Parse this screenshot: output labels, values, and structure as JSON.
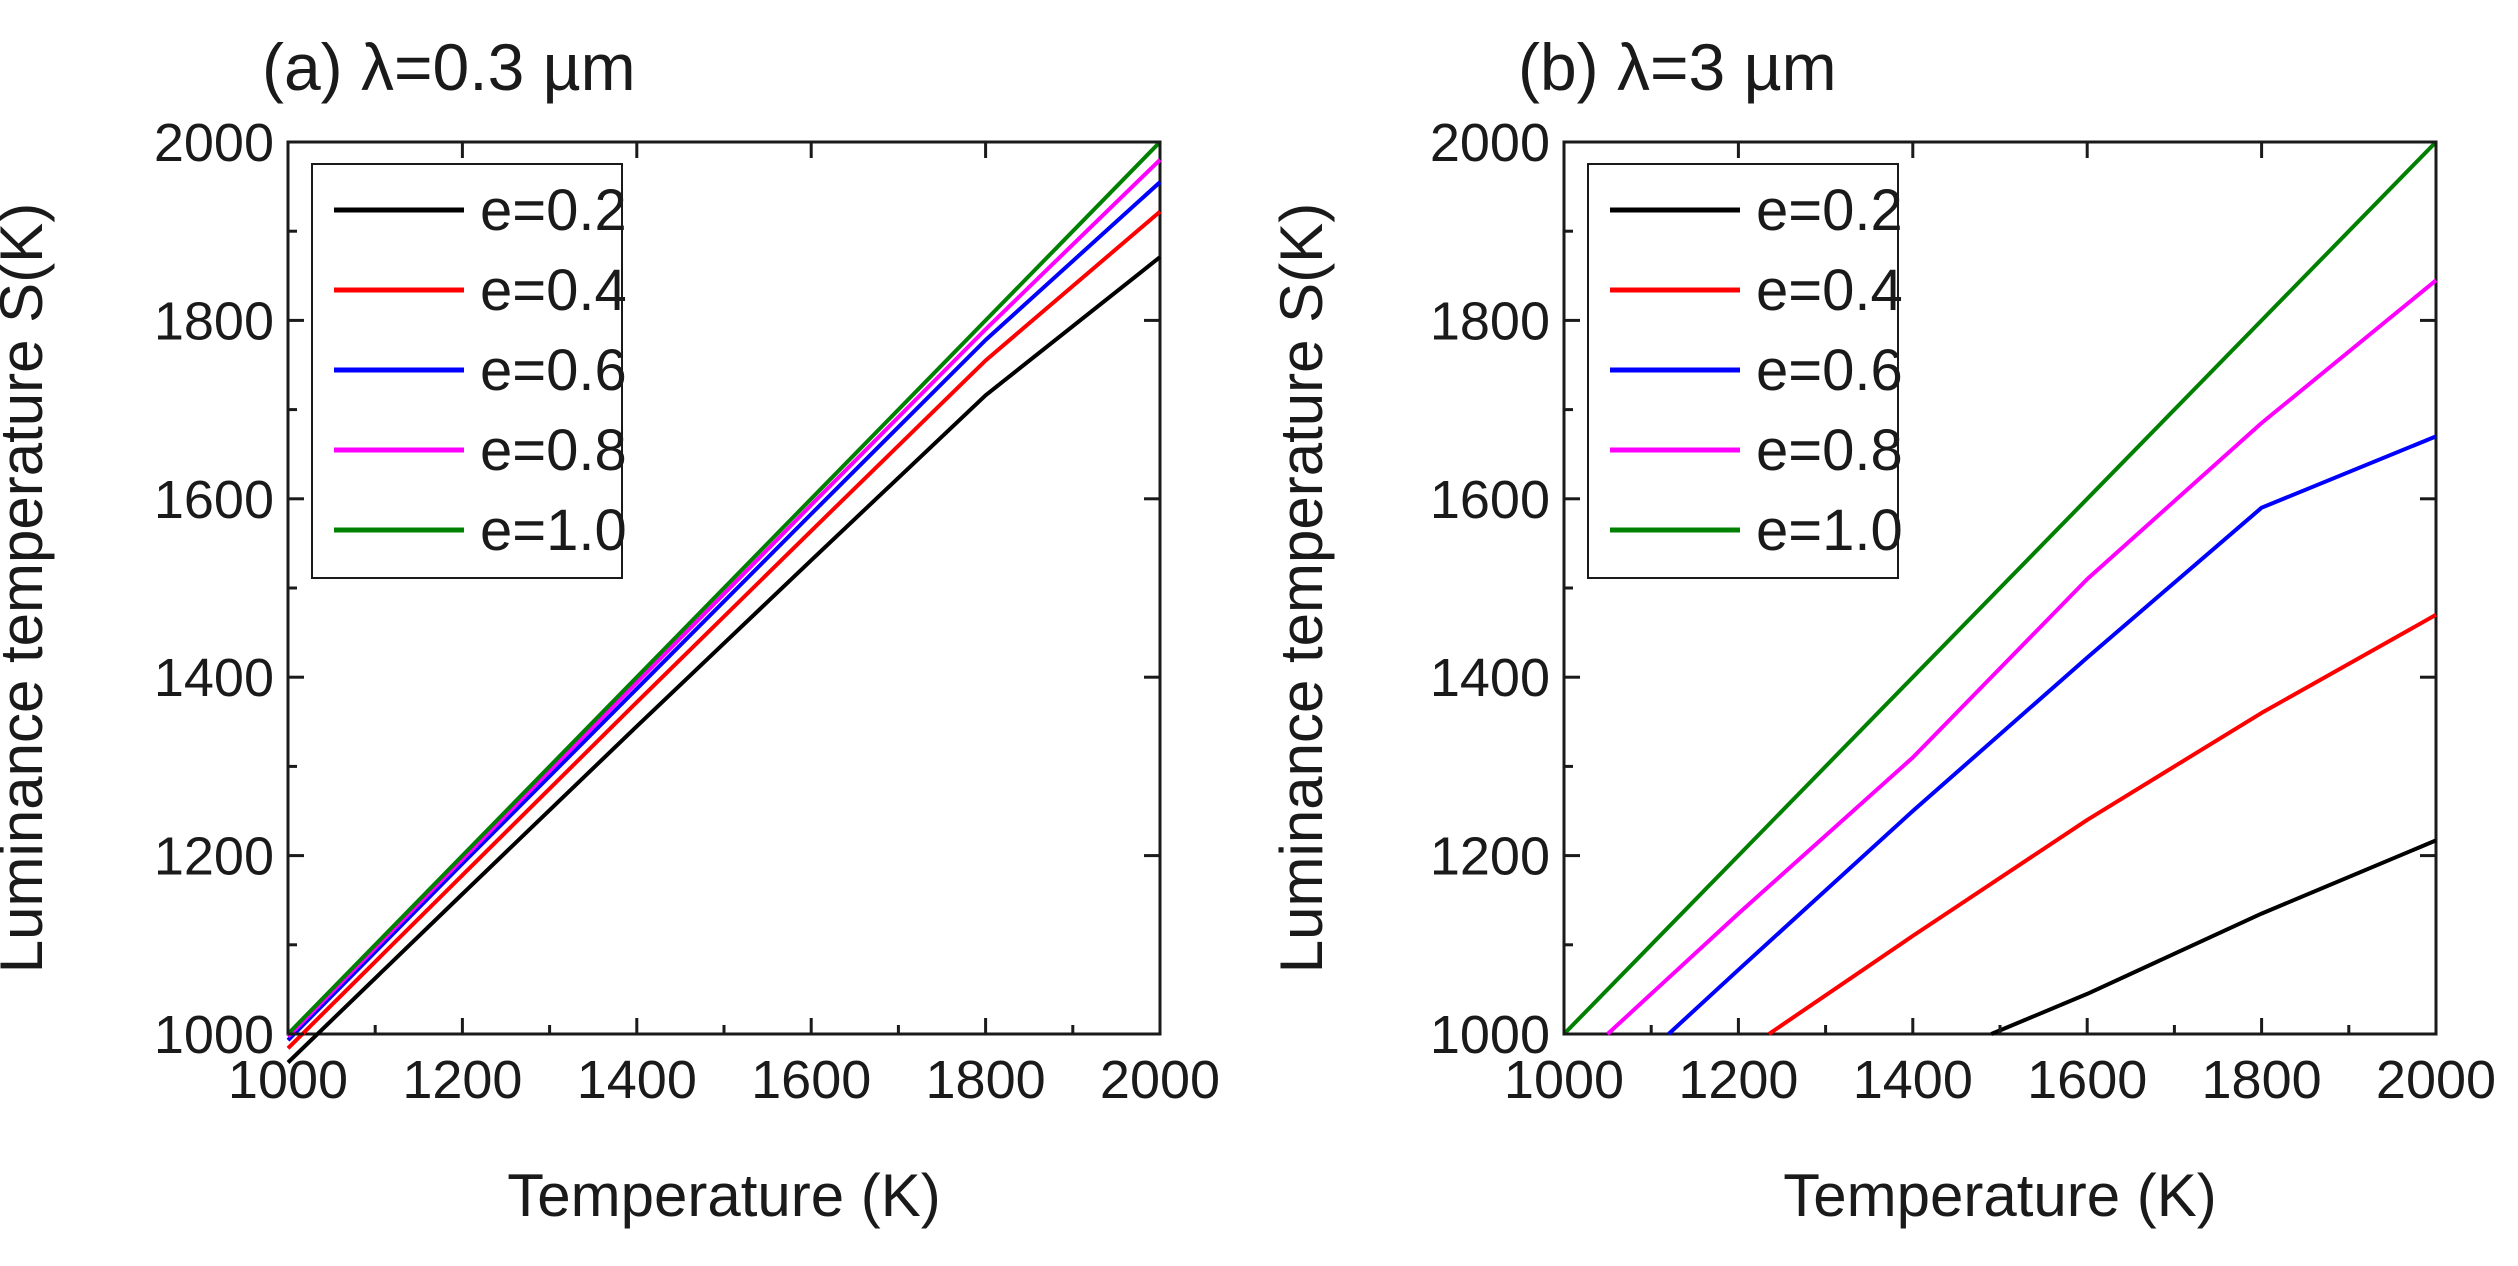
{
  "figure": {
    "description_free": true
  },
  "chart_data": [
    {
      "type": "line",
      "title": "(a) λ=0.3 µm",
      "xlabel": "Temperature (K)",
      "ylabel": "Luminance temperature S(K)",
      "xlim": [
        1000,
        2000
      ],
      "ylim": [
        1000,
        2000
      ],
      "xticks": [
        "1000",
        "1200",
        "1400",
        "1600",
        "1800",
        "2000"
      ],
      "yticks": [
        "1000",
        "1200",
        "1400",
        "1600",
        "1800",
        "2000"
      ],
      "legend_position": "top-left",
      "series": [
        {
          "name": "e=0.2",
          "color": "#000000",
          "x": [
            1000,
            1200,
            1400,
            1600,
            1800,
            2000
          ],
          "values": [
            968,
            1157,
            1345,
            1531,
            1716,
            1871
          ]
        },
        {
          "name": "e=0.4",
          "color": "#ff0000",
          "x": [
            1000,
            1200,
            1400,
            1600,
            1800,
            2000
          ],
          "values": [
            984,
            1178,
            1372,
            1564,
            1755,
            1922
          ]
        },
        {
          "name": "e=0.6",
          "color": "#0000ff",
          "x": [
            1000,
            1200,
            1400,
            1600,
            1800,
            2000
          ],
          "values": [
            993,
            1191,
            1387,
            1583,
            1778,
            1955
          ]
        },
        {
          "name": "e=0.8",
          "color": "#ff00ff",
          "x": [
            1000,
            1200,
            1400,
            1600,
            1800,
            2000
          ],
          "values": [
            997,
            1196,
            1394,
            1593,
            1790,
            1980
          ]
        },
        {
          "name": "e=1.0",
          "color": "#008000",
          "x": [
            1000,
            1200,
            1400,
            1600,
            1800,
            2000
          ],
          "values": [
            1000,
            1200,
            1400,
            1600,
            1800,
            2000
          ]
        }
      ]
    },
    {
      "type": "line",
      "title": "(b) λ=3 µm",
      "xlabel": "Temperature (K)",
      "ylabel": "Luminance temperature S(K)",
      "xlim": [
        1000,
        2000
      ],
      "ylim": [
        1000,
        2000
      ],
      "xticks": [
        "1000",
        "1200",
        "1400",
        "1600",
        "1800",
        "2000"
      ],
      "yticks": [
        "1000",
        "1200",
        "1400",
        "1600",
        "1800",
        "2000"
      ],
      "legend_position": "top-left",
      "series": [
        {
          "name": "e=0.2",
          "color": "#000000",
          "x": [
            1490,
            1600,
            1800,
            2000
          ],
          "values": [
            1000,
            1045,
            1135,
            1217
          ]
        },
        {
          "name": "e=0.4",
          "color": "#ff0000",
          "x": [
            1235,
            1400,
            1600,
            1800,
            2000
          ],
          "values": [
            1000,
            1110,
            1240,
            1360,
            1470
          ]
        },
        {
          "name": "e=0.6",
          "color": "#0000ff",
          "x": [
            1120,
            1200,
            1400,
            1600,
            1800,
            2000
          ],
          "values": [
            1000,
            1072,
            1250,
            1422,
            1590,
            1670
          ]
        },
        {
          "name": "e=0.8",
          "color": "#ff00ff",
          "x": [
            1050,
            1200,
            1400,
            1600,
            1800,
            2000
          ],
          "values": [
            1000,
            1135,
            1310,
            1510,
            1685,
            1845
          ]
        },
        {
          "name": "e=1.0",
          "color": "#008000",
          "x": [
            1000,
            1200,
            1400,
            1600,
            1800,
            2000
          ],
          "values": [
            1000,
            1200,
            1400,
            1600,
            1800,
            2000
          ]
        }
      ]
    }
  ]
}
